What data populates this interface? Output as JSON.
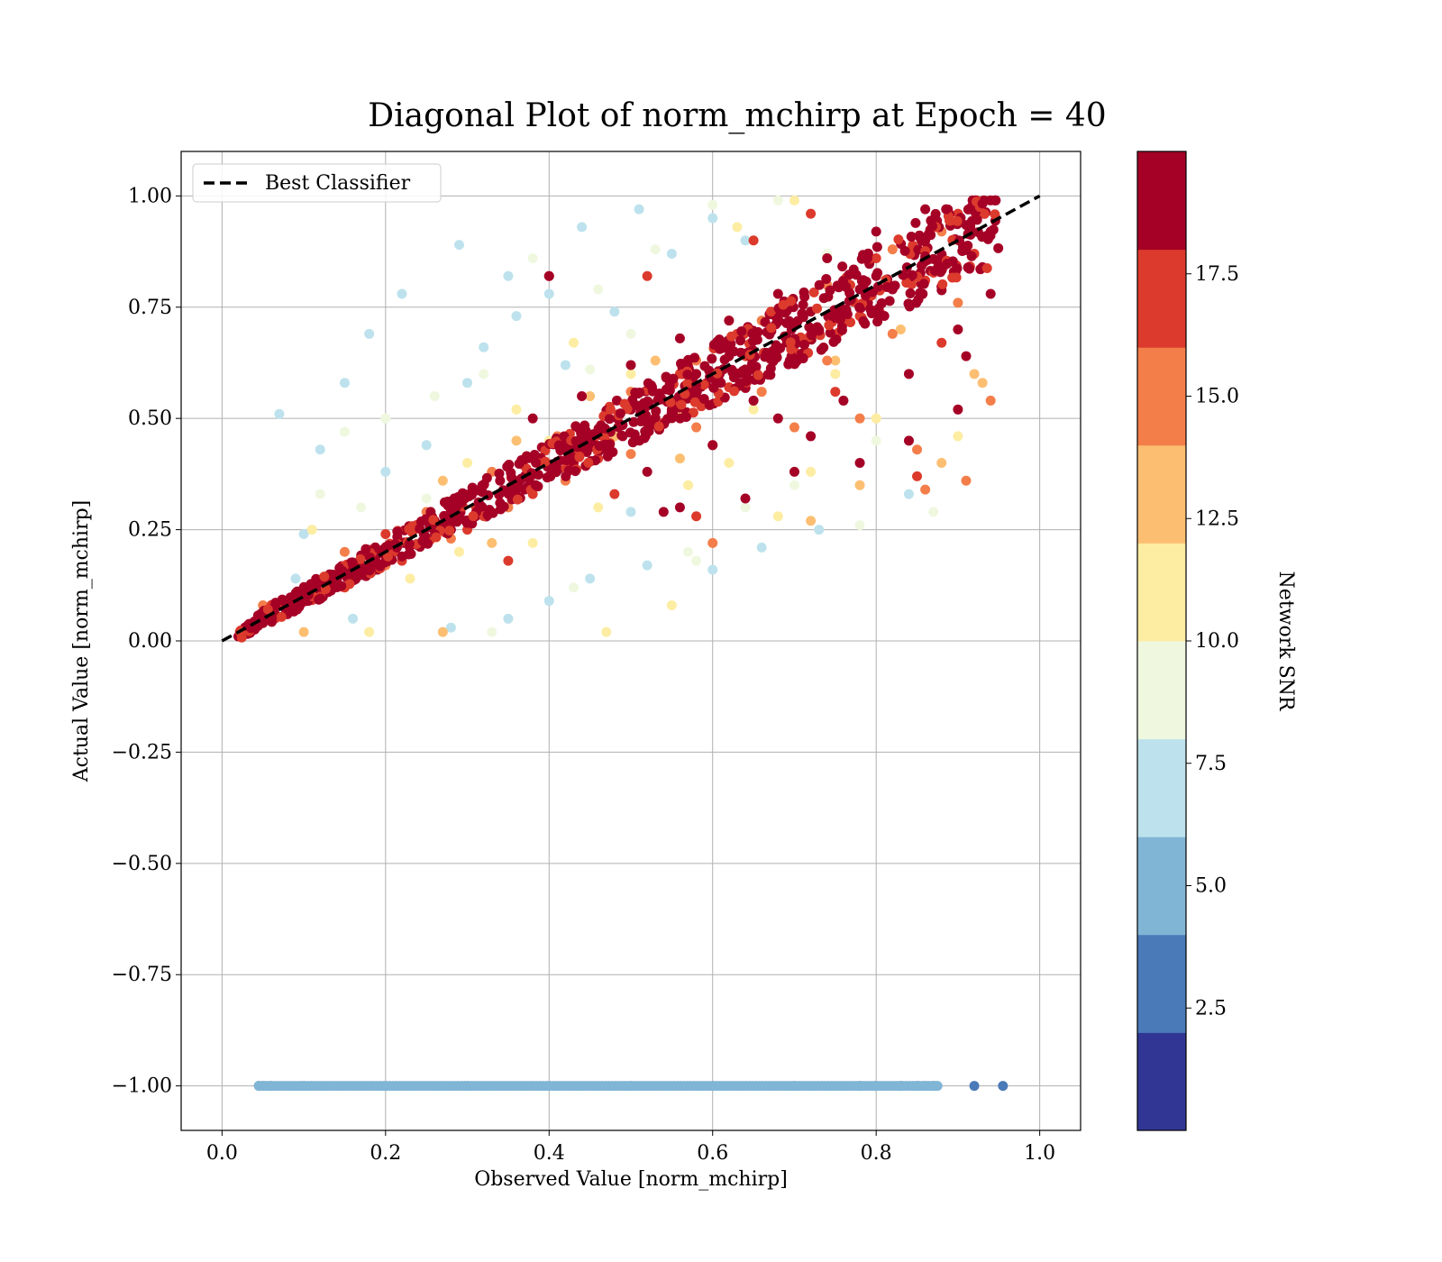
{
  "chart_data": {
    "type": "scatter",
    "title": "Diagonal Plot of norm_mchirp at Epoch = 40",
    "xlabel": "Observed Value [norm_mchirp]",
    "ylabel": "Actual Value [norm_mchirp]",
    "xlim": [
      -0.05,
      1.05
    ],
    "ylim": [
      -1.1,
      1.1
    ],
    "xticks": [
      0.0,
      0.2,
      0.4,
      0.6,
      0.8,
      1.0
    ],
    "xtick_labels": [
      "0.0",
      "0.2",
      "0.4",
      "0.6",
      "0.8",
      "1.0"
    ],
    "yticks": [
      1.0,
      0.75,
      0.5,
      0.25,
      0.0,
      -0.25,
      -0.5,
      -0.75,
      -1.0
    ],
    "ytick_labels": [
      "1.00",
      "0.75",
      "0.50",
      "0.25",
      "0.00",
      "−0.25",
      "−0.50",
      "−0.75",
      "−1.00"
    ],
    "grid": true,
    "legend": {
      "placement": "upper-left",
      "entries": [
        {
          "label": "Best Classifier",
          "style": "dashed",
          "color": "#000000"
        }
      ]
    },
    "reference_line": {
      "label": "Best Classifier",
      "x": [
        0.0,
        1.0
      ],
      "y": [
        0.0,
        1.0
      ]
    },
    "colorbar": {
      "label": "Network SNR",
      "range": [
        0,
        20
      ],
      "boundaries": [
        0,
        2,
        4,
        6,
        8,
        10,
        12,
        14,
        16,
        18,
        20
      ],
      "colors": [
        "#313695",
        "#4a7ab7",
        "#81b5d6",
        "#bde2ed",
        "#eff8df",
        "#fdeda3",
        "#fcbf72",
        "#f47e4a",
        "#dc3a2c",
        "#a50026"
      ],
      "ticks": [
        2.5,
        5.0,
        7.5,
        10.0,
        12.5,
        15.0,
        17.5
      ],
      "tick_labels": [
        "2.5",
        "5.0",
        "7.5",
        "10.0",
        "12.5",
        "15.0",
        "17.5"
      ]
    },
    "series": [
      {
        "description_snr_bin": "2-4",
        "color": "#4a7ab7",
        "points": [
          [
            0.045,
            -1.0
          ],
          [
            0.06,
            -1.0
          ],
          [
            0.78,
            -1.0
          ],
          [
            0.8,
            -1.0
          ],
          [
            0.83,
            -1.0
          ],
          [
            0.85,
            -1.0
          ],
          [
            0.87,
            -1.0
          ],
          [
            0.92,
            -1.0
          ],
          [
            0.955,
            -1.0
          ]
        ]
      },
      {
        "description_snr_bin": "4-6",
        "color": "#81b5d6",
        "points": [
          [
            0.05,
            -1.0
          ],
          [
            0.1,
            -1.0
          ],
          [
            0.2,
            -1.0
          ],
          [
            0.3,
            -1.0
          ],
          [
            0.4,
            -1.0
          ],
          [
            0.5,
            -1.0
          ],
          [
            0.6,
            -1.0
          ],
          [
            0.7,
            -1.0
          ],
          [
            0.8,
            -1.0
          ],
          [
            0.86,
            -1.0
          ],
          [
            0.875,
            -1.0
          ]
        ]
      },
      {
        "description_snr_bin": "6-8",
        "color": "#bde2ed",
        "points": [
          [
            0.07,
            0.51
          ],
          [
            0.18,
            0.69
          ],
          [
            0.22,
            0.78
          ],
          [
            0.29,
            0.89
          ],
          [
            0.35,
            0.82
          ],
          [
            0.44,
            0.93
          ],
          [
            0.51,
            0.97
          ],
          [
            0.15,
            0.58
          ],
          [
            0.12,
            0.43
          ],
          [
            0.3,
            0.58
          ],
          [
            0.36,
            0.73
          ],
          [
            0.42,
            0.62
          ],
          [
            0.55,
            0.87
          ],
          [
            0.6,
            0.95
          ],
          [
            0.64,
            0.9
          ],
          [
            0.28,
            0.03
          ],
          [
            0.35,
            0.05
          ],
          [
            0.4,
            0.09
          ],
          [
            0.45,
            0.14
          ],
          [
            0.52,
            0.17
          ],
          [
            0.6,
            0.16
          ],
          [
            0.66,
            0.21
          ],
          [
            0.73,
            0.25
          ],
          [
            0.84,
            0.33
          ],
          [
            0.5,
            0.29
          ],
          [
            0.25,
            0.44
          ],
          [
            0.2,
            0.38
          ],
          [
            0.1,
            0.24
          ],
          [
            0.09,
            0.14
          ],
          [
            0.16,
            0.05
          ],
          [
            0.48,
            0.74
          ],
          [
            0.32,
            0.66
          ],
          [
            0.4,
            0.78
          ]
        ]
      },
      {
        "description_snr_bin": "8-10",
        "color": "#eff8df",
        "points": [
          [
            0.15,
            0.47
          ],
          [
            0.2,
            0.5
          ],
          [
            0.26,
            0.55
          ],
          [
            0.32,
            0.6
          ],
          [
            0.38,
            0.86
          ],
          [
            0.46,
            0.79
          ],
          [
            0.53,
            0.88
          ],
          [
            0.6,
            0.98
          ],
          [
            0.68,
            0.99
          ],
          [
            0.12,
            0.33
          ],
          [
            0.17,
            0.3
          ],
          [
            0.33,
            0.02
          ],
          [
            0.43,
            0.12
          ],
          [
            0.57,
            0.2
          ],
          [
            0.64,
            0.3
          ],
          [
            0.7,
            0.35
          ],
          [
            0.78,
            0.26
          ],
          [
            0.87,
            0.29
          ],
          [
            0.8,
            0.45
          ],
          [
            0.58,
            0.18
          ],
          [
            0.25,
            0.32
          ],
          [
            0.45,
            0.61
          ],
          [
            0.5,
            0.69
          ],
          [
            0.74,
            0.87
          ],
          [
            0.9,
            0.9
          ]
        ]
      },
      {
        "description_snr_bin": "10-12",
        "color": "#fdeda3",
        "points": [
          [
            0.11,
            0.25
          ],
          [
            0.18,
            0.02
          ],
          [
            0.23,
            0.14
          ],
          [
            0.3,
            0.4
          ],
          [
            0.36,
            0.52
          ],
          [
            0.43,
            0.67
          ],
          [
            0.47,
            0.02
          ],
          [
            0.55,
            0.08
          ],
          [
            0.57,
            0.35
          ],
          [
            0.62,
            0.4
          ],
          [
            0.68,
            0.28
          ],
          [
            0.72,
            0.38
          ],
          [
            0.8,
            0.5
          ],
          [
            0.9,
            0.46
          ],
          [
            0.63,
            0.93
          ],
          [
            0.7,
            0.99
          ],
          [
            0.4,
            0.45
          ],
          [
            0.5,
            0.6
          ],
          [
            0.29,
            0.2
          ],
          [
            0.38,
            0.22
          ],
          [
            0.46,
            0.3
          ],
          [
            0.65,
            0.52
          ],
          [
            0.75,
            0.6
          ]
        ]
      },
      {
        "description_snr_bin": "12-14",
        "color": "#fcbf72",
        "points": [
          [
            0.1,
            0.02
          ],
          [
            0.27,
            0.02
          ],
          [
            0.33,
            0.22
          ],
          [
            0.4,
            0.37
          ],
          [
            0.48,
            0.46
          ],
          [
            0.56,
            0.51
          ],
          [
            0.66,
            0.56
          ],
          [
            0.75,
            0.63
          ],
          [
            0.83,
            0.7
          ],
          [
            0.92,
            0.6
          ],
          [
            0.93,
            0.58
          ],
          [
            0.88,
            0.4
          ],
          [
            0.78,
            0.35
          ],
          [
            0.62,
            0.72
          ],
          [
            0.53,
            0.63
          ],
          [
            0.45,
            0.55
          ],
          [
            0.36,
            0.45
          ],
          [
            0.27,
            0.36
          ],
          [
            0.72,
            0.27
          ],
          [
            0.56,
            0.41
          ]
        ]
      },
      {
        "description_snr_bin": "14-16",
        "color": "#f47e4a",
        "points": [
          [
            0.05,
            0.08
          ],
          [
            0.12,
            0.13
          ],
          [
            0.2,
            0.17
          ],
          [
            0.28,
            0.23
          ],
          [
            0.35,
            0.3
          ],
          [
            0.42,
            0.36
          ],
          [
            0.5,
            0.42
          ],
          [
            0.58,
            0.48
          ],
          [
            0.66,
            0.56
          ],
          [
            0.74,
            0.63
          ],
          [
            0.82,
            0.69
          ],
          [
            0.9,
            0.76
          ],
          [
            0.94,
            0.54
          ],
          [
            0.91,
            0.36
          ],
          [
            0.86,
            0.34
          ],
          [
            0.85,
            0.43
          ],
          [
            0.6,
            0.22
          ],
          [
            0.7,
            0.48
          ],
          [
            0.78,
            0.5
          ],
          [
            0.15,
            0.2
          ],
          [
            0.25,
            0.29
          ],
          [
            0.33,
            0.38
          ],
          [
            0.41,
            0.46
          ],
          [
            0.5,
            0.56
          ],
          [
            0.58,
            0.63
          ],
          [
            0.66,
            0.72
          ],
          [
            0.74,
            0.8
          ],
          [
            0.82,
            0.88
          ],
          [
            0.88,
            0.92
          ]
        ]
      },
      {
        "description_snr_bin": "16-18",
        "color": "#dc3a2c",
        "points": [
          [
            0.03,
            0.03
          ],
          [
            0.08,
            0.07
          ],
          [
            0.15,
            0.12
          ],
          [
            0.22,
            0.18
          ],
          [
            0.3,
            0.25
          ],
          [
            0.38,
            0.33
          ],
          [
            0.46,
            0.41
          ],
          [
            0.54,
            0.49
          ],
          [
            0.62,
            0.57
          ],
          [
            0.7,
            0.65
          ],
          [
            0.78,
            0.73
          ],
          [
            0.86,
            0.81
          ],
          [
            0.92,
            0.87
          ],
          [
            0.4,
            0.82
          ],
          [
            0.52,
            0.82
          ],
          [
            0.58,
            0.28
          ],
          [
            0.85,
            0.37
          ],
          [
            0.65,
            0.9
          ],
          [
            0.72,
            0.96
          ],
          [
            0.35,
            0.18
          ],
          [
            0.48,
            0.33
          ],
          [
            0.6,
            0.44
          ],
          [
            0.75,
            0.56
          ],
          [
            0.88,
            0.67
          ],
          [
            0.2,
            0.24
          ],
          [
            0.32,
            0.35
          ],
          [
            0.44,
            0.47
          ],
          [
            0.56,
            0.6
          ],
          [
            0.68,
            0.73
          ],
          [
            0.8,
            0.86
          ],
          [
            0.9,
            0.96
          ]
        ]
      },
      {
        "description_snr_bin": "18-20",
        "color": "#a50026",
        "points": [
          [
            0.02,
            0.01
          ],
          [
            0.05,
            0.04
          ],
          [
            0.08,
            0.06
          ],
          [
            0.1,
            0.09
          ],
          [
            0.13,
            0.11
          ],
          [
            0.16,
            0.14
          ],
          [
            0.19,
            0.16
          ],
          [
            0.22,
            0.19
          ],
          [
            0.25,
            0.22
          ],
          [
            0.28,
            0.25
          ],
          [
            0.31,
            0.28
          ],
          [
            0.34,
            0.31
          ],
          [
            0.37,
            0.34
          ],
          [
            0.4,
            0.37
          ],
          [
            0.43,
            0.4
          ],
          [
            0.46,
            0.43
          ],
          [
            0.49,
            0.46
          ],
          [
            0.52,
            0.49
          ],
          [
            0.55,
            0.52
          ],
          [
            0.58,
            0.55
          ],
          [
            0.61,
            0.58
          ],
          [
            0.64,
            0.61
          ],
          [
            0.67,
            0.64
          ],
          [
            0.7,
            0.67
          ],
          [
            0.73,
            0.7
          ],
          [
            0.76,
            0.73
          ],
          [
            0.79,
            0.76
          ],
          [
            0.82,
            0.79
          ],
          [
            0.85,
            0.82
          ],
          [
            0.88,
            0.85
          ],
          [
            0.91,
            0.88
          ],
          [
            0.94,
            0.92
          ],
          [
            0.38,
            0.5
          ],
          [
            0.44,
            0.55
          ],
          [
            0.5,
            0.62
          ],
          [
            0.56,
            0.68
          ],
          [
            0.62,
            0.72
          ],
          [
            0.68,
            0.78
          ],
          [
            0.74,
            0.86
          ],
          [
            0.8,
            0.92
          ],
          [
            0.86,
            0.97
          ],
          [
            0.92,
            0.98
          ],
          [
            0.52,
            0.38
          ],
          [
            0.6,
            0.44
          ],
          [
            0.68,
            0.5
          ],
          [
            0.76,
            0.54
          ],
          [
            0.84,
            0.6
          ],
          [
            0.9,
            0.7
          ],
          [
            0.94,
            0.78
          ],
          [
            0.93,
            0.84
          ],
          [
            0.91,
            0.64
          ],
          [
            0.9,
            0.52
          ],
          [
            0.84,
            0.45
          ],
          [
            0.78,
            0.4
          ],
          [
            0.7,
            0.38
          ],
          [
            0.64,
            0.32
          ],
          [
            0.56,
            0.3
          ],
          [
            0.4,
            0.82
          ],
          [
            0.54,
            0.29
          ],
          [
            0.78,
            0.79
          ],
          [
            0.72,
            0.46
          ],
          [
            0.65,
            0.54
          ],
          [
            0.58,
            0.6
          ],
          [
            0.5,
            0.52
          ],
          [
            0.42,
            0.44
          ],
          [
            0.34,
            0.36
          ],
          [
            0.26,
            0.27
          ],
          [
            0.2,
            0.21
          ],
          [
            0.14,
            0.13
          ],
          [
            0.45,
            0.46
          ],
          [
            0.62,
            0.64
          ],
          [
            0.8,
            0.82
          ],
          [
            0.86,
            0.9
          ],
          [
            0.72,
            0.74
          ]
        ]
      }
    ]
  }
}
